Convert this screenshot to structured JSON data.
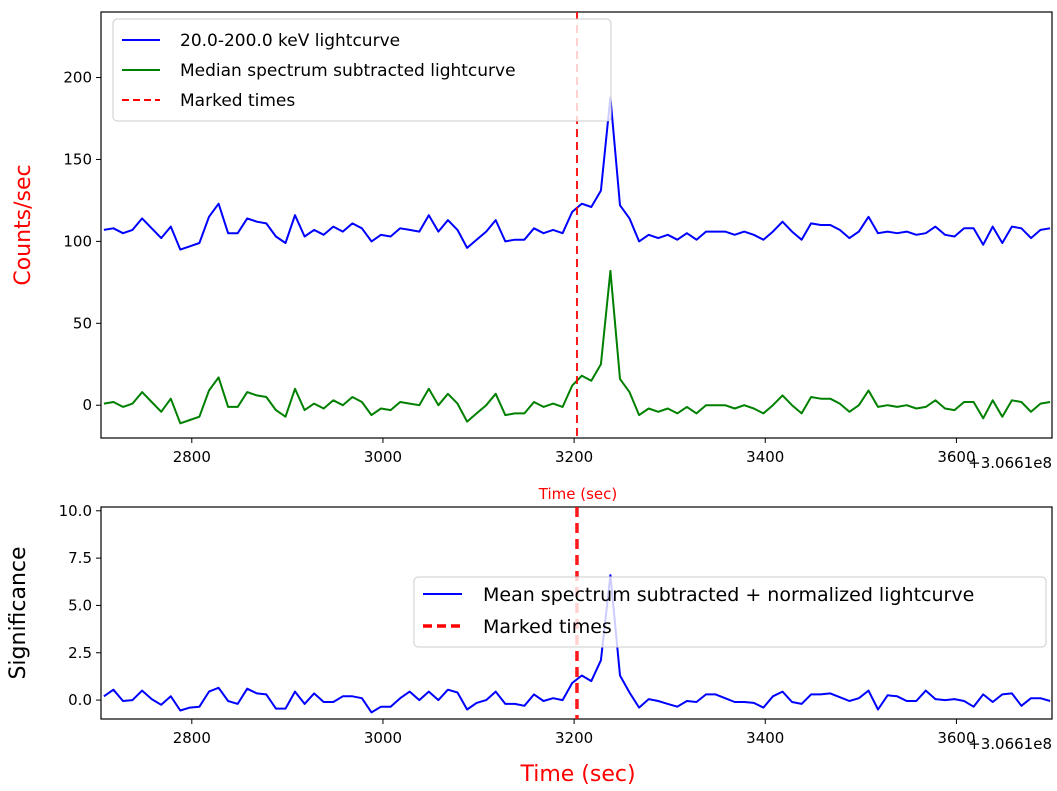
{
  "chart_data": [
    {
      "type": "line",
      "xlabel": "Time (sec)",
      "ylabel": "Counts/sec",
      "xlim": [
        2705,
        3700
      ],
      "ylim": [
        -20,
        240
      ],
      "x_offset_label": "+3.0661e8",
      "xticks": [
        2800,
        3000,
        3200,
        3400,
        3600
      ],
      "xtick_labels": [
        "2800",
        "3000",
        "3200",
        "3400",
        "3600"
      ],
      "yticks": [
        0,
        50,
        100,
        150,
        200
      ],
      "ytick_labels": [
        "0",
        "50",
        "100",
        "150",
        "200"
      ],
      "grid": false,
      "legend_position": "top-left",
      "marked_time": 3203,
      "marked_label": "Marked times",
      "colors": {
        "series1": "#0000ff",
        "series2": "#008000",
        "marker": "#ff0000",
        "ylabel": "#ff0000",
        "xlabel": "#ff0000"
      },
      "x": [
        2708,
        2718,
        2728,
        2738,
        2748,
        2758,
        2768,
        2778,
        2788,
        2798,
        2808,
        2818,
        2828,
        2838,
        2848,
        2858,
        2868,
        2878,
        2888,
        2898,
        2908,
        2918,
        2928,
        2938,
        2948,
        2958,
        2968,
        2978,
        2988,
        2998,
        3008,
        3018,
        3028,
        3038,
        3048,
        3058,
        3068,
        3078,
        3088,
        3098,
        3108,
        3118,
        3128,
        3138,
        3148,
        3158,
        3168,
        3178,
        3188,
        3198,
        3208,
        3218,
        3228,
        3238,
        3248,
        3258,
        3268,
        3278,
        3288,
        3298,
        3308,
        3318,
        3328,
        3338,
        3348,
        3358,
        3368,
        3378,
        3388,
        3398,
        3408,
        3418,
        3428,
        3438,
        3448,
        3458,
        3468,
        3478,
        3488,
        3498,
        3508,
        3518,
        3528,
        3538,
        3548,
        3558,
        3568,
        3578,
        3588,
        3598,
        3608,
        3618,
        3628,
        3638,
        3648,
        3658,
        3668,
        3678,
        3688,
        3698
      ],
      "series": [
        {
          "name": "20.0-200.0 keV lightcurve",
          "values": [
            107,
            108,
            105,
            107,
            114,
            108,
            102,
            109,
            95,
            97,
            99,
            115,
            123,
            105,
            105,
            114,
            112,
            111,
            103,
            99,
            116,
            103,
            107,
            104,
            109,
            106,
            111,
            108,
            100,
            104,
            103,
            108,
            107,
            106,
            116,
            106,
            113,
            107,
            96,
            101,
            106,
            113,
            100,
            101,
            101,
            108,
            105,
            107,
            105,
            118,
            123,
            121,
            131,
            188,
            122,
            114,
            100,
            104,
            102,
            104,
            101,
            105,
            101,
            106,
            106,
            106,
            104,
            106,
            104,
            101,
            106,
            112,
            106,
            101,
            111,
            110,
            110,
            107,
            102,
            106,
            115,
            105,
            106,
            105,
            106,
            104,
            105,
            109,
            104,
            103,
            108,
            108,
            98,
            109,
            99,
            109,
            108,
            102,
            107,
            108
          ]
        },
        {
          "name": "Median spectrum subtracted lightcurve",
          "values": [
            1,
            2,
            -1,
            1,
            8,
            2,
            -4,
            4,
            -11,
            -9,
            -7,
            9,
            17,
            -1,
            -1,
            8,
            6,
            5,
            -3,
            -7,
            10,
            -3,
            1,
            -2,
            3,
            0,
            5,
            2,
            -6,
            -2,
            -3,
            2,
            1,
            0,
            10,
            0,
            7,
            1,
            -10,
            -5,
            0,
            7,
            -6,
            -5,
            -5,
            2,
            -1,
            1,
            -1,
            12,
            18,
            15,
            25,
            82,
            16,
            8,
            -6,
            -2,
            -4,
            -2,
            -5,
            -1,
            -5,
            0,
            0,
            0,
            -2,
            0,
            -2,
            -5,
            0,
            6,
            0,
            -5,
            5,
            4,
            4,
            1,
            -4,
            0,
            9,
            -1,
            0,
            -1,
            0,
            -2,
            -1,
            3,
            -2,
            -3,
            2,
            2,
            -8,
            3,
            -7,
            3,
            2,
            -4,
            1,
            2
          ]
        }
      ]
    },
    {
      "type": "line",
      "xlabel": "Time (sec)",
      "ylabel": "Significance",
      "xlim": [
        2705,
        3700
      ],
      "ylim": [
        -1,
        10.2
      ],
      "x_offset_label": "+3.0661e8",
      "xticks": [
        2800,
        3000,
        3200,
        3400,
        3600
      ],
      "xtick_labels": [
        "2800",
        "3000",
        "3200",
        "3400",
        "3600"
      ],
      "yticks": [
        0,
        2.5,
        5,
        7.5,
        10
      ],
      "ytick_labels": [
        "0.0",
        "2.5",
        "5.0",
        "7.5",
        "10.0"
      ],
      "grid": false,
      "legend_position": "center-right",
      "marked_time": 3203,
      "marked_label": "Marked times",
      "colors": {
        "series1": "#0000ff",
        "marker": "#ff0000",
        "ylabel": "#000000",
        "xlabel": "#ff0000"
      },
      "x": [
        2708,
        2718,
        2728,
        2738,
        2748,
        2758,
        2768,
        2778,
        2788,
        2798,
        2808,
        2818,
        2828,
        2838,
        2848,
        2858,
        2868,
        2878,
        2888,
        2898,
        2908,
        2918,
        2928,
        2938,
        2948,
        2958,
        2968,
        2978,
        2988,
        2998,
        3008,
        3018,
        3028,
        3038,
        3048,
        3058,
        3068,
        3078,
        3088,
        3098,
        3108,
        3118,
        3128,
        3138,
        3148,
        3158,
        3168,
        3178,
        3188,
        3198,
        3208,
        3218,
        3228,
        3238,
        3248,
        3258,
        3268,
        3278,
        3288,
        3298,
        3308,
        3318,
        3328,
        3338,
        3348,
        3358,
        3368,
        3378,
        3388,
        3398,
        3408,
        3418,
        3428,
        3438,
        3448,
        3458,
        3468,
        3478,
        3488,
        3498,
        3508,
        3518,
        3528,
        3538,
        3548,
        3558,
        3568,
        3578,
        3588,
        3598,
        3608,
        3618,
        3628,
        3638,
        3648,
        3658,
        3668,
        3678,
        3688,
        3698
      ],
      "series": [
        {
          "name": "Mean spectrum subtracted + normalized lightcurve",
          "values": [
            0.2,
            0.55,
            -0.05,
            0.0,
            0.5,
            0.05,
            -0.25,
            0.2,
            -0.55,
            -0.4,
            -0.35,
            0.45,
            0.65,
            -0.05,
            -0.2,
            0.6,
            0.35,
            0.3,
            -0.45,
            -0.45,
            0.45,
            -0.2,
            0.35,
            -0.1,
            -0.1,
            0.2,
            0.2,
            0.1,
            -0.65,
            -0.35,
            -0.35,
            0.1,
            0.45,
            0.0,
            0.45,
            0.0,
            0.55,
            0.4,
            -0.5,
            -0.15,
            0.0,
            0.45,
            -0.2,
            -0.2,
            -0.3,
            0.3,
            -0.05,
            0.1,
            0.0,
            0.9,
            1.3,
            1.0,
            2.1,
            6.6,
            1.3,
            0.4,
            -0.4,
            0.05,
            -0.05,
            -0.2,
            -0.35,
            -0.05,
            -0.1,
            0.3,
            0.3,
            0.1,
            -0.1,
            -0.1,
            -0.15,
            -0.4,
            0.2,
            0.45,
            -0.1,
            -0.2,
            0.3,
            0.3,
            0.35,
            0.15,
            -0.05,
            0.1,
            0.5,
            -0.5,
            0.25,
            0.2,
            -0.05,
            -0.05,
            0.5,
            0.05,
            0.0,
            0.05,
            -0.05,
            -0.35,
            0.3,
            -0.1,
            0.3,
            0.35,
            -0.3,
            0.1,
            0.1,
            -0.05
          ]
        }
      ]
    }
  ]
}
